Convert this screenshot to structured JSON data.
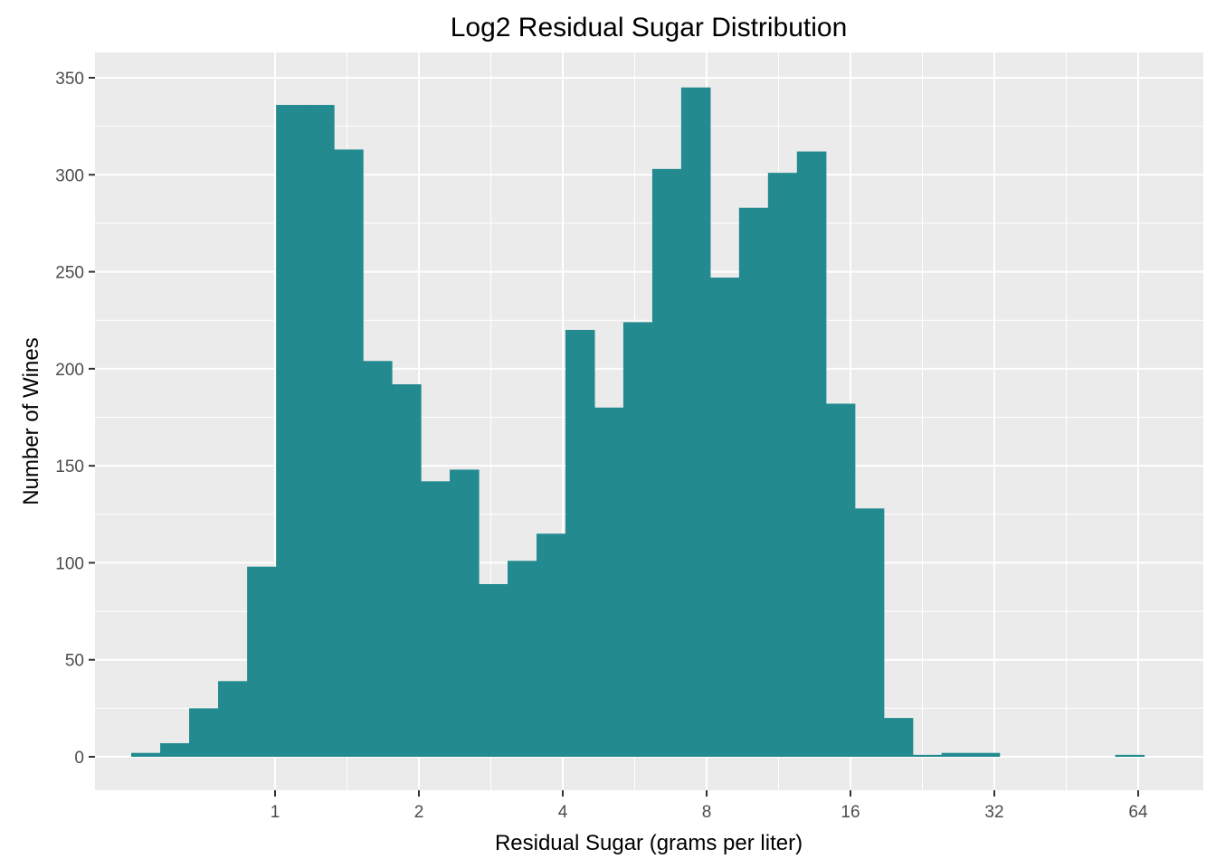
{
  "chart_data": {
    "type": "bar",
    "title": "Log2 Residual Sugar Distribution",
    "xlabel": "Residual Sugar (grams per liter)",
    "ylabel": "Number of Wines",
    "x_scale": "log2",
    "x_range": [
      0.46,
      84
    ],
    "ylim": [
      0,
      350
    ],
    "grid": true,
    "bar_color": "#238a8f",
    "panel_color": "#ebebeb",
    "grid_color": "#ffffff",
    "x_ticks": [
      {
        "value": 1,
        "label": "1"
      },
      {
        "value": 2,
        "label": "2"
      },
      {
        "value": 4,
        "label": "4"
      },
      {
        "value": 8,
        "label": "8"
      },
      {
        "value": 16,
        "label": "16"
      },
      {
        "value": 32,
        "label": "32"
      },
      {
        "value": 64,
        "label": "64"
      }
    ],
    "y_ticks": [
      {
        "value": 0,
        "label": "0"
      },
      {
        "value": 50,
        "label": "50"
      },
      {
        "value": 100,
        "label": "100"
      },
      {
        "value": 150,
        "label": "150"
      },
      {
        "value": 200,
        "label": "200"
      },
      {
        "value": 250,
        "label": "250"
      },
      {
        "value": 300,
        "label": "300"
      },
      {
        "value": 350,
        "label": "350"
      }
    ],
    "bins": [
      {
        "x0": 0.5,
        "x1": 0.575,
        "count": 2
      },
      {
        "x0": 0.575,
        "x1": 0.661,
        "count": 7
      },
      {
        "x0": 0.661,
        "x1": 0.76,
        "count": 25
      },
      {
        "x0": 0.76,
        "x1": 0.874,
        "count": 39
      },
      {
        "x0": 0.874,
        "x1": 1.005,
        "count": 98
      },
      {
        "x0": 1.005,
        "x1": 1.155,
        "count": 336
      },
      {
        "x0": 1.155,
        "x1": 1.328,
        "count": 336
      },
      {
        "x0": 1.328,
        "x1": 1.527,
        "count": 313
      },
      {
        "x0": 1.527,
        "x1": 1.755,
        "count": 204
      },
      {
        "x0": 1.755,
        "x1": 2.018,
        "count": 192
      },
      {
        "x0": 2.018,
        "x1": 2.32,
        "count": 142
      },
      {
        "x0": 2.32,
        "x1": 2.667,
        "count": 148
      },
      {
        "x0": 2.667,
        "x1": 3.066,
        "count": 89
      },
      {
        "x0": 3.066,
        "x1": 3.525,
        "count": 101
      },
      {
        "x0": 3.525,
        "x1": 4.052,
        "count": 115
      },
      {
        "x0": 4.052,
        "x1": 4.658,
        "count": 220
      },
      {
        "x0": 4.658,
        "x1": 5.355,
        "count": 180
      },
      {
        "x0": 5.355,
        "x1": 6.156,
        "count": 224
      },
      {
        "x0": 6.156,
        "x1": 7.077,
        "count": 303
      },
      {
        "x0": 7.077,
        "x1": 8.136,
        "count": 345
      },
      {
        "x0": 8.136,
        "x1": 9.353,
        "count": 247
      },
      {
        "x0": 9.353,
        "x1": 10.752,
        "count": 283
      },
      {
        "x0": 10.752,
        "x1": 12.361,
        "count": 301
      },
      {
        "x0": 12.361,
        "x1": 14.21,
        "count": 312
      },
      {
        "x0": 14.21,
        "x1": 16.336,
        "count": 182
      },
      {
        "x0": 16.336,
        "x1": 18.78,
        "count": 128
      },
      {
        "x0": 18.78,
        "x1": 21.59,
        "count": 20
      },
      {
        "x0": 21.59,
        "x1": 24.82,
        "count": 1
      },
      {
        "x0": 24.82,
        "x1": 28.53,
        "count": 2
      },
      {
        "x0": 28.53,
        "x1": 32.8,
        "count": 2
      },
      {
        "x0": 32.8,
        "x1": 37.71,
        "count": 0
      },
      {
        "x0": 37.71,
        "x1": 43.35,
        "count": 0
      },
      {
        "x0": 43.35,
        "x1": 49.83,
        "count": 0
      },
      {
        "x0": 49.83,
        "x1": 57.29,
        "count": 0
      },
      {
        "x0": 57.29,
        "x1": 65.86,
        "count": 1
      }
    ]
  }
}
